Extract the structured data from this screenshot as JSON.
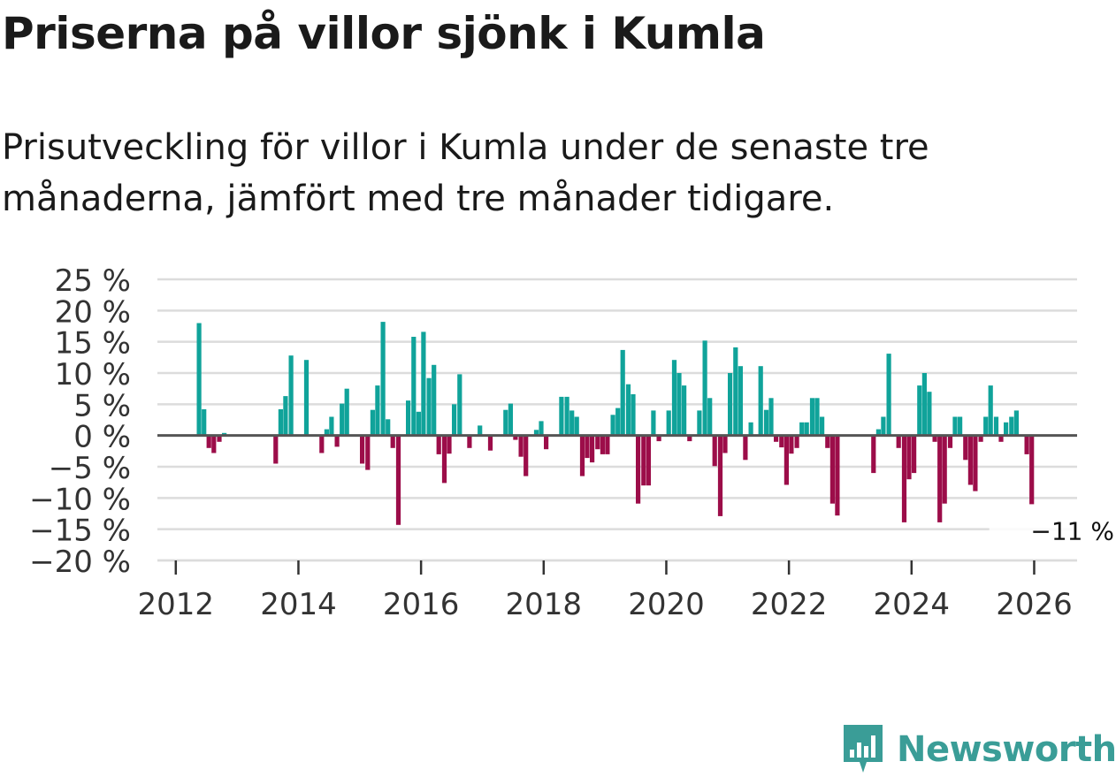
{
  "title": "Priserna på villor sjönk i Kumla",
  "subtitle": "Prisutveckling för villor i Kumla under de senaste tre månaderna, jämfört med tre månader tidigare.",
  "brand": {
    "name": "Newsworthy"
  },
  "colors": {
    "positive": "#10a39a",
    "negative": "#9c0d49",
    "grid": "#dcdcdc",
    "zero_line": "#555555",
    "text": "#1a1a1a",
    "brand": "#3a9d97"
  },
  "chart_data": {
    "type": "bar",
    "title": "Priserna på villor sjönk i Kumla",
    "xlabel": "",
    "ylabel": "",
    "ylim": [
      -20,
      25
    ],
    "xlim": [
      2011.7,
      2026.7
    ],
    "y_ticks": [
      25,
      20,
      15,
      10,
      5,
      0,
      -5,
      -10,
      -15,
      -20
    ],
    "y_tick_labels": [
      "25 %",
      "20 %",
      "15 %",
      "10 %",
      "5 %",
      "0 %",
      "−5 %",
      "−10 %",
      "−15 %",
      "−20 %"
    ],
    "x_ticks": [
      2012,
      2014,
      2016,
      2018,
      2020,
      2022,
      2024,
      2026
    ],
    "x_tick_labels": [
      "2012",
      "2014",
      "2016",
      "2018",
      "2020",
      "2022",
      "2024",
      "2026"
    ],
    "annotation": {
      "label": "−11 %",
      "value": -11
    },
    "series": [
      {
        "name": "Prisutveckling",
        "points": [
          [
            2012.38,
            18
          ],
          [
            2012.46,
            4.2
          ],
          [
            2012.54,
            -2
          ],
          [
            2012.62,
            -2.8
          ],
          [
            2012.71,
            -1
          ],
          [
            2012.79,
            0.4
          ],
          [
            2013.63,
            -4.5
          ],
          [
            2013.71,
            4.2
          ],
          [
            2013.79,
            6.3
          ],
          [
            2013.88,
            12.8
          ],
          [
            2014.13,
            12.1
          ],
          [
            2014.38,
            -2.8
          ],
          [
            2014.46,
            1
          ],
          [
            2014.54,
            3
          ],
          [
            2014.63,
            -1.8
          ],
          [
            2014.71,
            5.1
          ],
          [
            2014.79,
            7.5
          ],
          [
            2015.04,
            -4.5
          ],
          [
            2015.13,
            -5.5
          ],
          [
            2015.21,
            4.1
          ],
          [
            2015.29,
            8
          ],
          [
            2015.38,
            18.2
          ],
          [
            2015.46,
            2.6
          ],
          [
            2015.54,
            -2
          ],
          [
            2015.63,
            -14.3
          ],
          [
            2015.79,
            5.6
          ],
          [
            2015.88,
            15.8
          ],
          [
            2015.96,
            3.8
          ],
          [
            2016.04,
            16.6
          ],
          [
            2016.13,
            9.2
          ],
          [
            2016.21,
            11.3
          ],
          [
            2016.29,
            -3
          ],
          [
            2016.38,
            -7.6
          ],
          [
            2016.46,
            -2.9
          ],
          [
            2016.54,
            5
          ],
          [
            2016.63,
            9.8
          ],
          [
            2016.79,
            -2
          ],
          [
            2016.96,
            1.6
          ],
          [
            2017.13,
            -2.4
          ],
          [
            2017.38,
            4.1
          ],
          [
            2017.46,
            5.1
          ],
          [
            2017.54,
            -0.7
          ],
          [
            2017.63,
            -3.4
          ],
          [
            2017.71,
            -6.5
          ],
          [
            2017.88,
            0.9
          ],
          [
            2017.96,
            2.3
          ],
          [
            2018.04,
            -2.2
          ],
          [
            2018.29,
            6.2
          ],
          [
            2018.38,
            6.2
          ],
          [
            2018.46,
            4
          ],
          [
            2018.54,
            3
          ],
          [
            2018.63,
            -6.5
          ],
          [
            2018.71,
            -3.6
          ],
          [
            2018.79,
            -4.3
          ],
          [
            2018.88,
            -2.2
          ],
          [
            2018.96,
            -3
          ],
          [
            2019.04,
            -3
          ],
          [
            2019.13,
            3.3
          ],
          [
            2019.21,
            4.4
          ],
          [
            2019.29,
            13.7
          ],
          [
            2019.38,
            8.2
          ],
          [
            2019.46,
            6.6
          ],
          [
            2019.54,
            -10.9
          ],
          [
            2019.63,
            -8
          ],
          [
            2019.71,
            -8
          ],
          [
            2019.79,
            4
          ],
          [
            2019.88,
            -0.9
          ],
          [
            2020.04,
            4
          ],
          [
            2020.13,
            12.1
          ],
          [
            2020.21,
            10
          ],
          [
            2020.29,
            8
          ],
          [
            2020.38,
            -0.9
          ],
          [
            2020.54,
            4
          ],
          [
            2020.63,
            15.2
          ],
          [
            2020.71,
            6
          ],
          [
            2020.79,
            -4.9
          ],
          [
            2020.88,
            -12.9
          ],
          [
            2020.96,
            -2.8
          ],
          [
            2021.04,
            10
          ],
          [
            2021.13,
            14.1
          ],
          [
            2021.21,
            11.1
          ],
          [
            2021.29,
            -3.9
          ],
          [
            2021.38,
            2.1
          ],
          [
            2021.54,
            11.1
          ],
          [
            2021.63,
            4.1
          ],
          [
            2021.71,
            6
          ],
          [
            2021.79,
            -1
          ],
          [
            2021.88,
            -1.9
          ],
          [
            2021.96,
            -7.9
          ],
          [
            2022.04,
            -2.9
          ],
          [
            2022.13,
            -2
          ],
          [
            2022.21,
            2.1
          ],
          [
            2022.29,
            2.1
          ],
          [
            2022.38,
            6
          ],
          [
            2022.46,
            6
          ],
          [
            2022.54,
            3
          ],
          [
            2022.63,
            -2
          ],
          [
            2022.71,
            -10.9
          ],
          [
            2022.79,
            -12.8
          ],
          [
            2023.38,
            -6
          ],
          [
            2023.46,
            1
          ],
          [
            2023.54,
            3
          ],
          [
            2023.63,
            13.1
          ],
          [
            2023.79,
            -2
          ],
          [
            2023.88,
            -13.9
          ],
          [
            2023.96,
            -7
          ],
          [
            2024.04,
            -6
          ],
          [
            2024.13,
            8
          ],
          [
            2024.21,
            10
          ],
          [
            2024.29,
            7
          ],
          [
            2024.38,
            -1
          ],
          [
            2024.46,
            -13.9
          ],
          [
            2024.54,
            -10.9
          ],
          [
            2024.63,
            -2
          ],
          [
            2024.71,
            3
          ],
          [
            2024.79,
            3
          ],
          [
            2024.88,
            -3.9
          ],
          [
            2024.96,
            -7.9
          ],
          [
            2025.04,
            -8.9
          ],
          [
            2025.13,
            -1
          ],
          [
            2025.21,
            3
          ],
          [
            2025.29,
            8
          ],
          [
            2025.38,
            3
          ],
          [
            2025.46,
            -1
          ],
          [
            2025.54,
            2.1
          ],
          [
            2025.63,
            3
          ],
          [
            2025.71,
            4
          ],
          [
            2025.88,
            -3
          ],
          [
            2025.96,
            -11
          ]
        ]
      }
    ]
  }
}
